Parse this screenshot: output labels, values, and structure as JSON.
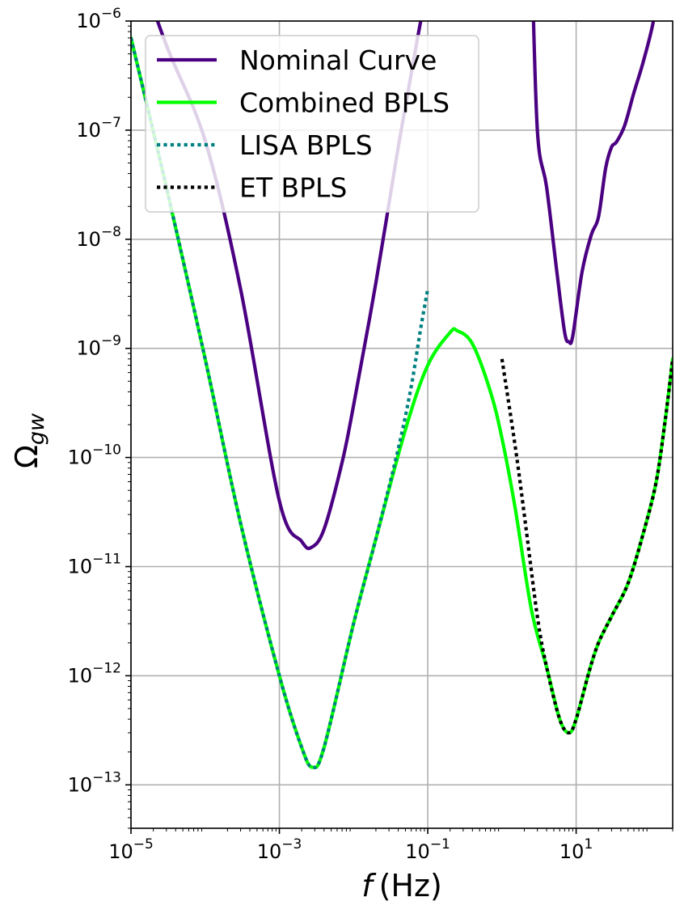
{
  "chart_data": {
    "type": "line",
    "xlabel": "f (Hz)",
    "ylabel": "Ω_gw",
    "xscale": "log",
    "yscale": "log",
    "xlim": [
      1e-05,
      200
    ],
    "ylim": [
      4e-14,
      1e-06
    ],
    "grid": true,
    "legend_position": "top-left",
    "x_ticks": [
      {
        "value": 1e-05,
        "base": "10",
        "exp": "−5"
      },
      {
        "value": 0.001,
        "base": "10",
        "exp": "−3"
      },
      {
        "value": 0.1,
        "base": "10",
        "exp": "−1"
      },
      {
        "value": 10,
        "base": "10",
        "exp": "1"
      }
    ],
    "y_ticks": [
      {
        "value": 1e-13,
        "base": "10",
        "exp": "−13"
      },
      {
        "value": 1e-12,
        "base": "10",
        "exp": "−12"
      },
      {
        "value": 1e-11,
        "base": "10",
        "exp": "−11"
      },
      {
        "value": 1e-10,
        "base": "10",
        "exp": "−10"
      },
      {
        "value": 1e-09,
        "base": "10",
        "exp": "−9"
      },
      {
        "value": 1e-08,
        "base": "10",
        "exp": "−8"
      },
      {
        "value": 1e-07,
        "base": "10",
        "exp": "−7"
      },
      {
        "value": 1e-06,
        "base": "10",
        "exp": "−6"
      }
    ],
    "series": [
      {
        "name": "Nominal Curve",
        "color": "#4b0082",
        "style": "solid",
        "segments": [
          [
            [
              1e-05,
              5e-06
            ],
            [
              3e-05,
              6e-07
            ],
            [
              0.0001,
              8e-08
            ],
            [
              0.0003,
              3.5e-09
            ],
            [
              0.001,
              4e-11
            ],
            [
              0.002,
              1.7e-11
            ],
            [
              0.0027,
              1.5e-11
            ],
            [
              0.004,
              2.2e-11
            ],
            [
              0.007,
              9e-11
            ],
            [
              0.01,
              3e-10
            ],
            [
              0.02,
              4e-09
            ],
            [
              0.04,
              7e-08
            ],
            [
              0.07,
              6e-07
            ],
            [
              0.09,
              1.5e-06
            ]
          ],
          [
            [
              2.5,
              5e-06
            ],
            [
              3,
              1e-07
            ],
            [
              4,
              3e-08
            ],
            [
              5.5,
              5e-09
            ],
            [
              7,
              1.4e-09
            ],
            [
              8,
              1.15e-09
            ],
            [
              9,
              1.3e-09
            ],
            [
              12,
              5e-09
            ],
            [
              16,
              1.1e-08
            ],
            [
              20,
              1.6e-08
            ],
            [
              25,
              4.5e-08
            ],
            [
              30,
              7e-08
            ],
            [
              35,
              7.8e-08
            ],
            [
              45,
              1.1e-07
            ],
            [
              60,
              2.2e-07
            ],
            [
              80,
              4.2e-07
            ],
            [
              110,
              1e-06
            ],
            [
              140,
              3e-06
            ]
          ]
        ]
      },
      {
        "name": "Combined BPLS",
        "color": "#00ff00",
        "style": "solid",
        "segments": [
          [
            [
              1e-05,
              7e-07
            ],
            [
              3e-05,
              3e-08
            ],
            [
              0.0001,
              8e-10
            ],
            [
              0.0003,
              2.5e-11
            ],
            [
              0.001,
              1e-12
            ],
            [
              0.002,
              2.2e-13
            ],
            [
              0.0028,
              1.45e-13
            ],
            [
              0.004,
              2.2e-13
            ],
            [
              0.01,
              3e-12
            ],
            [
              0.02,
              1.8e-11
            ],
            [
              0.05,
              1.8e-10
            ],
            [
              0.1,
              7e-10
            ],
            [
              0.2,
              1.4e-09
            ],
            [
              0.25,
              1.45e-09
            ],
            [
              0.4,
              1.1e-09
            ],
            [
              0.7,
              4e-10
            ],
            [
              1,
              1.5e-10
            ],
            [
              1.5,
              3.5e-11
            ],
            [
              2.5,
              4e-12
            ],
            [
              4,
              1.2e-12
            ],
            [
              6,
              4e-13
            ],
            [
              8,
              3e-13
            ],
            [
              10,
              4e-13
            ],
            [
              15,
              1.1e-12
            ],
            [
              20,
              2e-12
            ],
            [
              30,
              3.5e-12
            ],
            [
              50,
              7e-12
            ],
            [
              80,
              2e-11
            ],
            [
              120,
              6e-11
            ],
            [
              160,
              2.3e-10
            ],
            [
              200,
              8e-10
            ]
          ]
        ]
      },
      {
        "name": "LISA BPLS",
        "color": "#008080",
        "style": "dotted",
        "segments": [
          [
            [
              1e-05,
              7e-07
            ],
            [
              3e-05,
              3e-08
            ],
            [
              0.0001,
              8e-10
            ],
            [
              0.0003,
              2.5e-11
            ],
            [
              0.001,
              1e-12
            ],
            [
              0.002,
              2.2e-13
            ],
            [
              0.0028,
              1.45e-13
            ],
            [
              0.004,
              2.2e-13
            ],
            [
              0.01,
              3e-12
            ],
            [
              0.02,
              1.8e-11
            ],
            [
              0.04,
              1.2e-10
            ],
            [
              0.06,
              4.5e-10
            ],
            [
              0.08,
              1.5e-09
            ],
            [
              0.1,
              3.5e-09
            ]
          ]
        ]
      },
      {
        "name": "ET BPLS",
        "color": "#000000",
        "style": "dotted",
        "segments": [
          [
            [
              1,
              8e-10
            ],
            [
              1.5,
              1.3e-10
            ],
            [
              2,
              3e-11
            ],
            [
              3,
              3.5e-12
            ],
            [
              4,
              1.2e-12
            ],
            [
              6,
              4e-13
            ],
            [
              8,
              3e-13
            ],
            [
              10,
              4e-13
            ],
            [
              15,
              1.1e-12
            ],
            [
              20,
              2e-12
            ],
            [
              30,
              3.5e-12
            ],
            [
              50,
              7e-12
            ],
            [
              80,
              2e-11
            ],
            [
              120,
              6e-11
            ],
            [
              160,
              2.3e-10
            ],
            [
              200,
              8e-10
            ]
          ]
        ]
      }
    ]
  }
}
